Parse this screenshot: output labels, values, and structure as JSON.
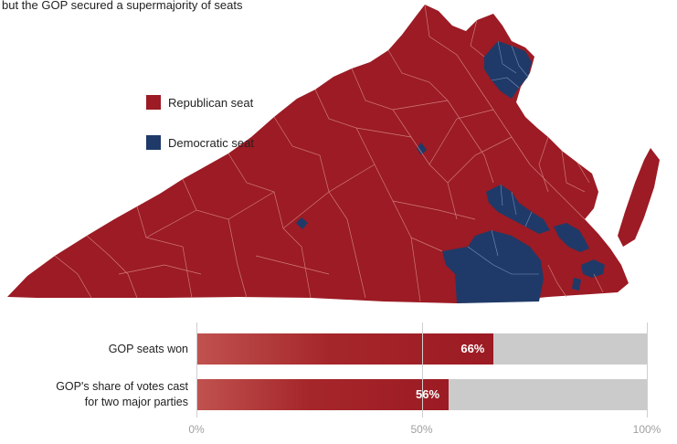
{
  "subtitle": "but the GOP secured a supermajority of seats",
  "colors": {
    "republican": "#9c1b24",
    "democratic": "#1f3a68",
    "track": "#cbcbcb",
    "district_lines": "#d98b8b"
  },
  "legend": [
    {
      "label": "Republican seat",
      "color": "#9c1b24"
    },
    {
      "label": "Democratic seat",
      "color": "#1f3a68"
    }
  ],
  "chart_data": {
    "type": "bar",
    "orientation": "horizontal",
    "categories": [
      "GOP seats won",
      "GOP's share of votes cast for two major parties"
    ],
    "category_lines": [
      [
        "GOP seats won"
      ],
      [
        "GOP's share of votes cast",
        "for two major parties"
      ]
    ],
    "values": [
      66,
      56
    ],
    "value_labels": [
      "66%",
      "56%"
    ],
    "xlim": [
      0,
      100
    ],
    "ticks": [
      0,
      50,
      100
    ],
    "tick_labels": [
      "0%",
      "50%",
      "100%"
    ]
  }
}
